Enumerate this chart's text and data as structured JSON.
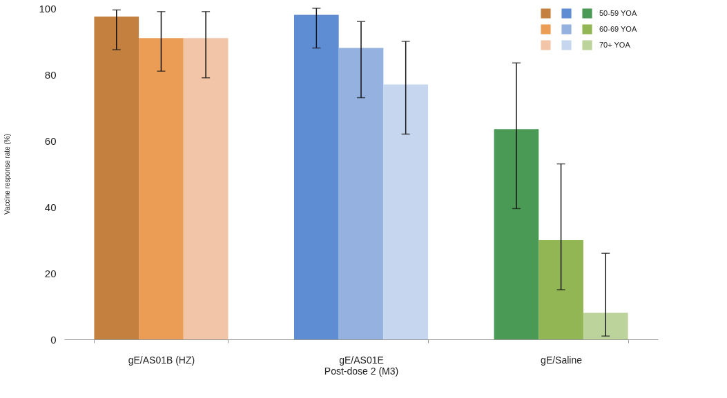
{
  "chart_data": {
    "type": "bar",
    "ylabel": "Vaccine response rate (%)",
    "categories": [
      "gE/AS01B (HZ)",
      "gE/AS01E\nPost-dose 2 (M3)",
      "gE/Saline"
    ],
    "series": [
      {
        "name": "50-59 YOA",
        "colors": [
          "#c4803f",
          "#5f8dd3",
          "#4a9a55"
        ],
        "values": [
          97.5,
          98,
          63.5
        ],
        "errors": [
          [
            87.5,
            99.5
          ],
          [
            88,
            100
          ],
          [
            39.5,
            83.5
          ]
        ]
      },
      {
        "name": "60-69 YOA",
        "colors": [
          "#eb9c55",
          "#94b1e0",
          "#93b655"
        ],
        "values": [
          91,
          88,
          30
        ],
        "errors": [
          [
            81,
            99
          ],
          [
            73,
            96
          ],
          [
            15,
            53
          ]
        ]
      },
      {
        "name": "70+ YOA",
        "colors": [
          "#f2c5a8",
          "#c6d6ee",
          "#bdd39c"
        ],
        "values": [
          91,
          77,
          8
        ],
        "errors": [
          [
            79,
            99
          ],
          [
            62,
            90
          ],
          [
            1,
            26
          ]
        ]
      }
    ],
    "ylim": [
      0,
      100
    ],
    "yticks": [
      0,
      20,
      40,
      60,
      80,
      100
    ],
    "grid": false,
    "legend": "top right"
  }
}
